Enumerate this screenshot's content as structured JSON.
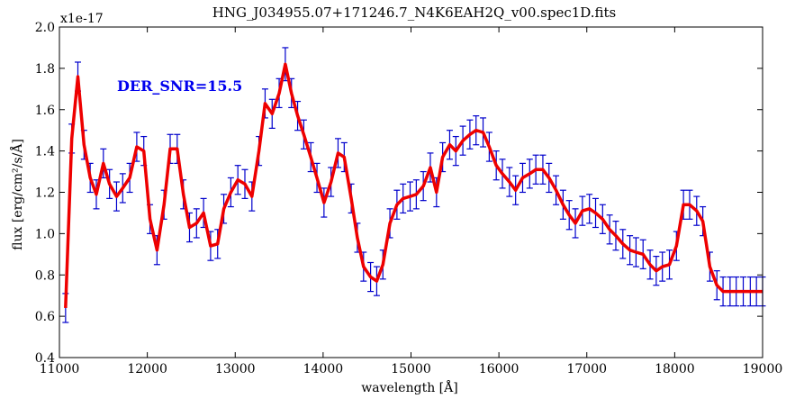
{
  "chart_data": {
    "type": "line",
    "title": "HNG_J034955.07+171246.7_N4K6EAH2Q_v00.spec1D.fits",
    "xlabel": "wavelength  [Å]",
    "ylabel": "flux  [erg/cm²/s/Å]",
    "y_multiplier": "x1e-17",
    "annotation": "DER_SNR=15.5",
    "xlim": [
      11000,
      19000
    ],
    "ylim": [
      0.4,
      2.0
    ],
    "xticks": [
      "11000",
      "12000",
      "13000",
      "14000",
      "15000",
      "16000",
      "17000",
      "18000",
      "19000"
    ],
    "yticks": [
      "0.4",
      "0.6",
      "0.8",
      "1.0",
      "1.2",
      "1.4",
      "1.6",
      "1.8",
      "2.0"
    ],
    "grid": false,
    "series": [
      {
        "color": "#ee0000",
        "x": [
          11070,
          11140,
          11210,
          11280,
          11350,
          11420,
          11500,
          11570,
          11650,
          11720,
          11800,
          11880,
          11960,
          12030,
          12110,
          12190,
          12260,
          12340,
          12410,
          12480,
          12560,
          12640,
          12720,
          12800,
          12870,
          12950,
          13030,
          13110,
          13190,
          13270,
          13340,
          13420,
          13500,
          13570,
          13640,
          13710,
          13780,
          13860,
          13930,
          14010,
          14090,
          14170,
          14240,
          14320,
          14390,
          14460,
          14540,
          14610,
          14680,
          14760,
          14840,
          14910,
          14990,
          15060,
          15140,
          15220,
          15290,
          15360,
          15440,
          15510,
          15590,
          15670,
          15740,
          15820,
          15890,
          15970,
          16040,
          16120,
          16190,
          16270,
          16350,
          16420,
          16500,
          16570,
          16650,
          16730,
          16800,
          16870,
          16950,
          17030,
          17100,
          17180,
          17260,
          17330,
          17410,
          17490,
          17560,
          17640,
          17720,
          17790,
          17860,
          17940,
          18020,
          18100,
          18170,
          18250,
          18320,
          18400,
          18480,
          18550,
          18630,
          18700,
          18780,
          18860,
          18930,
          19000
        ],
        "y": [
          0.64,
          1.46,
          1.76,
          1.43,
          1.27,
          1.19,
          1.34,
          1.24,
          1.18,
          1.22,
          1.27,
          1.42,
          1.4,
          1.07,
          0.92,
          1.14,
          1.41,
          1.41,
          1.19,
          1.03,
          1.05,
          1.1,
          0.94,
          0.95,
          1.12,
          1.2,
          1.26,
          1.24,
          1.18,
          1.4,
          1.63,
          1.58,
          1.68,
          1.82,
          1.68,
          1.57,
          1.48,
          1.37,
          1.27,
          1.15,
          1.25,
          1.39,
          1.37,
          1.17,
          0.98,
          0.84,
          0.79,
          0.77,
          0.85,
          1.05,
          1.14,
          1.17,
          1.18,
          1.19,
          1.23,
          1.32,
          1.2,
          1.37,
          1.43,
          1.4,
          1.45,
          1.48,
          1.5,
          1.49,
          1.42,
          1.33,
          1.29,
          1.25,
          1.21,
          1.27,
          1.29,
          1.31,
          1.31,
          1.27,
          1.21,
          1.14,
          1.09,
          1.05,
          1.11,
          1.12,
          1.1,
          1.07,
          1.02,
          0.99,
          0.95,
          0.92,
          0.91,
          0.9,
          0.85,
          0.82,
          0.84,
          0.85,
          0.94,
          1.14,
          1.14,
          1.11,
          1.06,
          0.84,
          0.75,
          0.72,
          0.72,
          0.72,
          0.72,
          0.72,
          0.72,
          0.72
        ],
        "errors": [
          0.07,
          0.07,
          0.07,
          0.07,
          0.07,
          0.07,
          0.07,
          0.07,
          0.07,
          0.07,
          0.07,
          0.07,
          0.07,
          0.07,
          0.07,
          0.07,
          0.07,
          0.07,
          0.07,
          0.07,
          0.07,
          0.07,
          0.07,
          0.07,
          0.07,
          0.07,
          0.07,
          0.07,
          0.07,
          0.07,
          0.07,
          0.07,
          0.07,
          0.08,
          0.07,
          0.07,
          0.07,
          0.07,
          0.07,
          0.07,
          0.07,
          0.07,
          0.07,
          0.07,
          0.07,
          0.07,
          0.07,
          0.07,
          0.07,
          0.07,
          0.07,
          0.07,
          0.07,
          0.07,
          0.07,
          0.07,
          0.07,
          0.07,
          0.07,
          0.07,
          0.07,
          0.07,
          0.07,
          0.07,
          0.07,
          0.07,
          0.07,
          0.07,
          0.07,
          0.07,
          0.07,
          0.07,
          0.07,
          0.07,
          0.07,
          0.07,
          0.07,
          0.07,
          0.07,
          0.07,
          0.07,
          0.07,
          0.07,
          0.07,
          0.07,
          0.07,
          0.07,
          0.07,
          0.07,
          0.07,
          0.07,
          0.07,
          0.07,
          0.07,
          0.07,
          0.07,
          0.07,
          0.07,
          0.07,
          0.07,
          0.07,
          0.07,
          0.07,
          0.07,
          0.07,
          0.07
        ]
      }
    ],
    "errorbar_color": "#0000cc"
  }
}
